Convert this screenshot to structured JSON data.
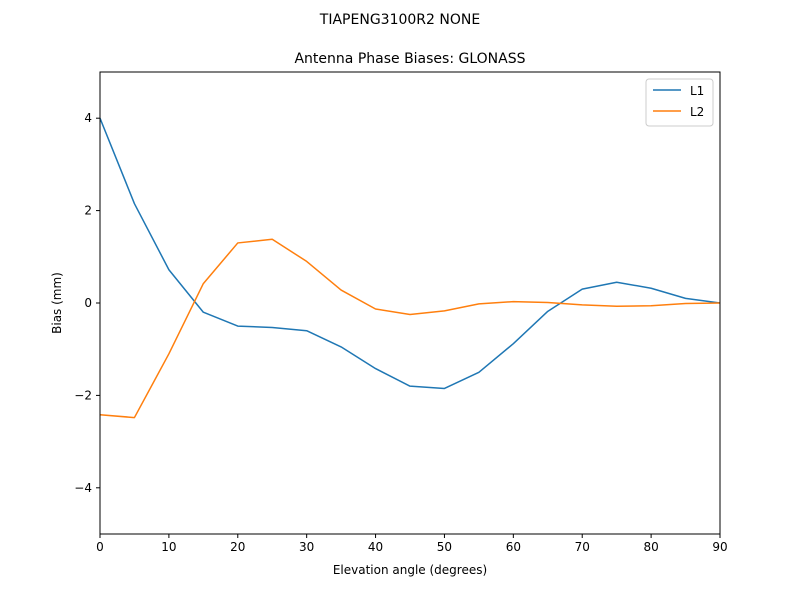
{
  "figure": {
    "suptitle": "TIAPENG3100R2   NONE"
  },
  "chart_data": {
    "type": "line",
    "title": "Antenna Phase Biases: GLONASS",
    "xlabel": "Elevation angle (degrees)",
    "ylabel": "Bias (mm)",
    "xlim": [
      0,
      90
    ],
    "ylim": [
      -5,
      5
    ],
    "xticks": [
      0,
      10,
      20,
      30,
      40,
      50,
      60,
      70,
      80,
      90
    ],
    "yticks": [
      -4,
      -2,
      0,
      2,
      4
    ],
    "ytick_labels": [
      "−4",
      "−2",
      "0",
      "2",
      "4"
    ],
    "grid": false,
    "legend_position": "top-right",
    "x": [
      0,
      5,
      10,
      15,
      20,
      25,
      30,
      35,
      40,
      45,
      50,
      55,
      60,
      65,
      70,
      75,
      80,
      85,
      90
    ],
    "series": [
      {
        "name": "L1",
        "color": "#1f77b4",
        "values": [
          4.0,
          2.15,
          0.72,
          -0.2,
          -0.5,
          -0.53,
          -0.6,
          -0.95,
          -1.42,
          -1.8,
          -1.85,
          -1.5,
          -0.88,
          -0.18,
          0.3,
          0.45,
          0.32,
          0.1,
          0.0
        ]
      },
      {
        "name": "L2",
        "color": "#ff7f0e",
        "values": [
          -2.42,
          -2.48,
          -1.1,
          0.42,
          1.3,
          1.38,
          0.9,
          0.28,
          -0.13,
          -0.25,
          -0.17,
          -0.02,
          0.03,
          0.01,
          -0.04,
          -0.07,
          -0.06,
          -0.01,
          0.0
        ]
      }
    ]
  }
}
